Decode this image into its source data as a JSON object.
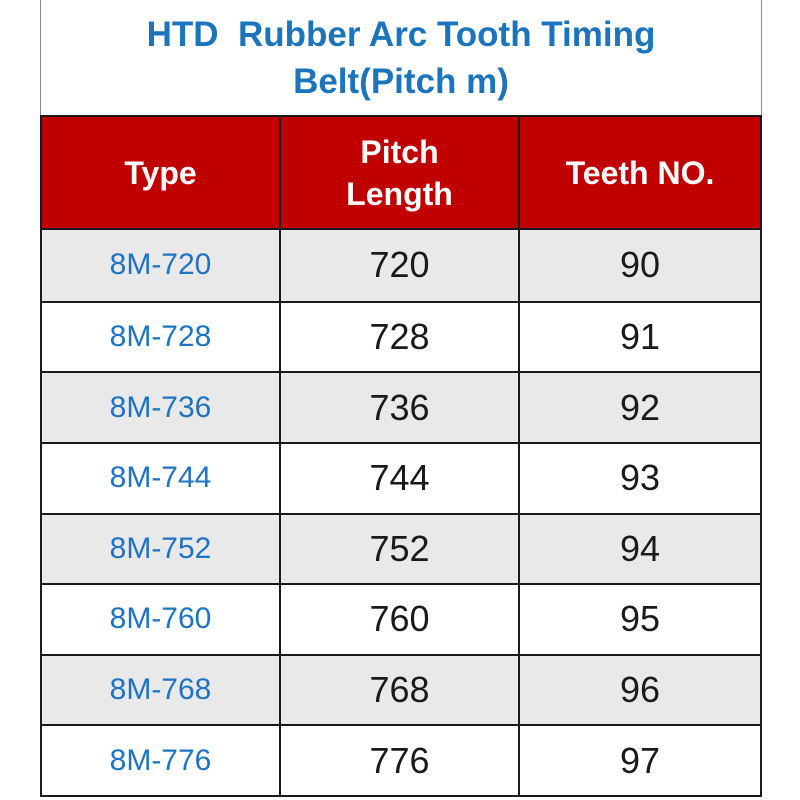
{
  "page": {
    "title_line1": "HTD  Rubber Arc Tooth Timing",
    "title_line2": "Belt(Pitch m)"
  },
  "table": {
    "columns": [
      {
        "id": "type",
        "label": "Type"
      },
      {
        "id": "pitch_length",
        "label": "Pitch\nLength"
      },
      {
        "id": "teeth_no",
        "label": "Teeth NO."
      }
    ],
    "rows": [
      {
        "type": "8M-720",
        "pitch_length": "720",
        "teeth_no": "90"
      },
      {
        "type": "8M-728",
        "pitch_length": "728",
        "teeth_no": "91"
      },
      {
        "type": "8M-736",
        "pitch_length": "736",
        "teeth_no": "92"
      },
      {
        "type": "8M-744",
        "pitch_length": "744",
        "teeth_no": "93"
      },
      {
        "type": "8M-752",
        "pitch_length": "752",
        "teeth_no": "94"
      },
      {
        "type": "8M-760",
        "pitch_length": "760",
        "teeth_no": "95"
      },
      {
        "type": "8M-768",
        "pitch_length": "768",
        "teeth_no": "96"
      },
      {
        "type": "8M-776",
        "pitch_length": "776",
        "teeth_no": "97"
      }
    ]
  },
  "colors": {
    "header_bg": "#C00000",
    "header_text": "#FFFFFF",
    "title_text": "#1B74BC",
    "type_text": "#1E73C2",
    "value_text": "#1A1A1A",
    "row_alt_bg": "#E9E9E9",
    "border": "#1A1A1A"
  }
}
